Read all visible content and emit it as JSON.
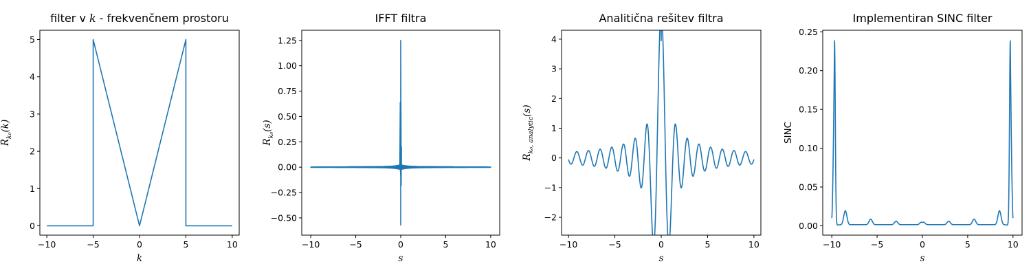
{
  "style": {
    "line_color": "#1f77b4",
    "background": "#ffffff",
    "axis_color": "#000000"
  },
  "chart_data": [
    {
      "id": "p1",
      "type": "line",
      "title": "filter v k - frekvenčnem prostoru",
      "title_parts": [
        "filter v ",
        "k",
        " - frekvenčnem prostoru"
      ],
      "xlabel": "k",
      "ylabel": "R̃",
      "ylabel_sub": "k₀",
      "ylabel_suffix": "(k)",
      "xlim": [
        -10.75,
        10.75
      ],
      "ylim": [
        -0.25,
        5.25
      ],
      "xticks": [
        -10,
        -5,
        0,
        5,
        10
      ],
      "yticks": [
        0,
        1,
        2,
        3,
        4,
        5
      ],
      "ytick_labels": [
        "0",
        "1",
        "2",
        "3",
        "4",
        "5"
      ],
      "grid": false,
      "legend": "none",
      "series": [
        {
          "kind": "points",
          "x": [
            -10,
            -5,
            -5,
            0,
            5,
            5,
            10
          ],
          "y": [
            0,
            0,
            5,
            0,
            5,
            0,
            0
          ]
        }
      ]
    },
    {
      "id": "p2",
      "type": "line",
      "title": "IFFT filtra",
      "xlabel": "s",
      "ylabel": "R",
      "ylabel_sub": "k₀",
      "ylabel_suffix": "(s)",
      "xlim": [
        -11,
        11
      ],
      "ylim": [
        -0.67,
        1.35
      ],
      "xticks": [
        -10,
        -5,
        0,
        5,
        10
      ],
      "yticks": [
        -0.5,
        -0.25,
        0,
        0.25,
        0.5,
        0.75,
        1.0,
        1.25
      ],
      "ytick_labels": [
        "−0.50",
        "−0.25",
        "0.00",
        "0.25",
        "0.50",
        "0.75",
        "1.00",
        "1.25"
      ],
      "grid": false,
      "legend": "none",
      "series": [
        {
          "kind": "ifft",
          "x_range": [
            -10,
            10
          ],
          "center_max": 1.25,
          "center_min": -0.57,
          "envelope_amp": 0.012,
          "near_spikes": [
            0.64,
            0.2,
            -0.18
          ]
        }
      ]
    },
    {
      "id": "p3",
      "type": "line",
      "title": "Analitična rešitev filtra",
      "xlabel": "s",
      "ylabel": "R",
      "ylabel_sub": "k₀, analytic",
      "ylabel_suffix": "(s)",
      "xlim": [
        -10.75,
        10.75
      ],
      "ylim": [
        -2.6,
        4.3
      ],
      "xticks": [
        -10,
        -5,
        0,
        5,
        10
      ],
      "yticks": [
        -2,
        -1,
        0,
        1,
        2,
        3,
        4
      ],
      "ytick_labels": [
        "−2",
        "−1",
        "0",
        "1",
        "2",
        "3",
        "4"
      ],
      "grid": false,
      "legend": "none",
      "series": [
        {
          "kind": "analytic",
          "formula": "(2*sin(5s) - 2*(1-cos(5s))/(5s)) / s",
          "x_range": [
            -10,
            10
          ],
          "value_at_0": 5.0,
          "peak_observed": 3.95
        }
      ]
    },
    {
      "id": "p4",
      "type": "line",
      "title": "Implementiran SINC filter",
      "xlabel": "s",
      "ylabel": "SINC",
      "xlim": [
        -11,
        11
      ],
      "ylim": [
        -0.012,
        0.252
      ],
      "xticks": [
        -10,
        -5,
        0,
        5,
        10
      ],
      "yticks": [
        0,
        0.05,
        0.1,
        0.15,
        0.2,
        0.25
      ],
      "ytick_labels": [
        "0.00",
        "0.05",
        "0.10",
        "0.15",
        "0.20",
        "0.25"
      ],
      "grid": false,
      "legend": "none",
      "series": [
        {
          "kind": "sinc",
          "x_range": [
            -10,
            10
          ],
          "peak_positions": [
            -9.7,
            9.7
          ],
          "peak_value": 0.238,
          "end_value": 0.01,
          "min_value": 0.0
        }
      ]
    }
  ]
}
